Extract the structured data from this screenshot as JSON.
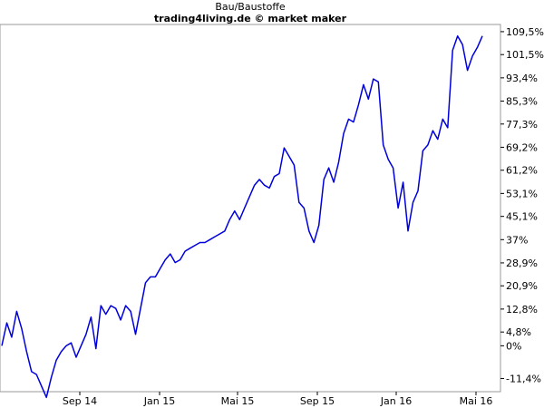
{
  "chart_data": {
    "type": "line",
    "title": "Bau/Baustoffe",
    "subtitle": "trading4living.de © market maker",
    "xlabel": "",
    "ylabel": "",
    "y_unit": "%",
    "ylim": [
      -16,
      112
    ],
    "grid": false,
    "x_tick_labels": [
      "Sep 14",
      "Jan 15",
      "Mai 15",
      "Sep 15",
      "Jan 16",
      "Mai 16"
    ],
    "y_tick_labels": [
      "109,5%",
      "101,5%",
      "93,4%",
      "85,3%",
      "77,3%",
      "69,2%",
      "61,2%",
      "53,1%",
      "45,1%",
      "37%",
      "28,9%",
      "20,9%",
      "12,8%",
      "4,8%",
      "0%",
      "-11,4%"
    ],
    "y_tick_values": [
      109.5,
      101.5,
      93.4,
      85.3,
      77.3,
      69.2,
      61.2,
      53.1,
      45.1,
      37,
      28.9,
      20.9,
      12.8,
      4.8,
      0,
      -11.4
    ],
    "x_range": [
      "Jun 14",
      "Mai 16"
    ],
    "series": [
      {
        "color": "#0000dd",
        "x": [
          "Jun 14",
          "Jun 14",
          "Jul 14",
          "Jul 14",
          "Jul 14",
          "Jul 14",
          "Aug 14",
          "Aug 14",
          "Aug 14",
          "Aug 14",
          "Aug 14",
          "Sep 14",
          "Sep 14",
          "Sep 14",
          "Sep 14",
          "Sep 14",
          "Okt 14",
          "Okt 14",
          "Okt 14",
          "Okt 14",
          "Nov 14",
          "Nov 14",
          "Nov 14",
          "Nov 14",
          "Dez 14",
          "Dez 14",
          "Dez 14",
          "Dez 14",
          "Jan 15",
          "Jan 15",
          "Jan 15",
          "Jan 15",
          "Feb 15",
          "Feb 15",
          "Feb 15",
          "Feb 15",
          "Mär 15",
          "Mär 15",
          "Mär 15",
          "Mär 15",
          "Apr 15",
          "Apr 15",
          "Apr 15",
          "Apr 15",
          "Mai 15",
          "Mai 15",
          "Mai 15",
          "Mai 15",
          "Jun 15",
          "Jun 15",
          "Jun 15",
          "Jun 15",
          "Jul 15",
          "Jul 15",
          "Jul 15",
          "Jul 15",
          "Aug 15",
          "Aug 15",
          "Aug 15",
          "Aug 15",
          "Aug 15",
          "Sep 15",
          "Sep 15",
          "Sep 15",
          "Sep 15",
          "Sep 15",
          "Okt 15",
          "Okt 15",
          "Okt 15",
          "Okt 15",
          "Nov 15",
          "Nov 15",
          "Nov 15",
          "Nov 15",
          "Dez 15",
          "Dez 15",
          "Dez 15",
          "Dez 15",
          "Jan 16",
          "Jan 16",
          "Jan 16",
          "Jan 16",
          "Feb 16",
          "Feb 16",
          "Feb 16",
          "Feb 16",
          "Mär 16",
          "Mär 16",
          "Mär 16",
          "Mär 16",
          "Mär 16",
          "Apr 16",
          "Apr 16",
          "Apr 16",
          "Apr 16",
          "Mai 16",
          "Mai 16",
          "Mai 16"
        ],
        "values": [
          0,
          8,
          3,
          12,
          6,
          -2,
          -9,
          -10,
          -14,
          -18,
          -11,
          -5,
          -2,
          0,
          1,
          -4,
          0,
          4,
          10,
          -1,
          14,
          11,
          14,
          13,
          9,
          14,
          12,
          4,
          13,
          22,
          24,
          24,
          27,
          30,
          32,
          29,
          30,
          33,
          34,
          35,
          36,
          36,
          37,
          38,
          39,
          40,
          44,
          47,
          44,
          48,
          52,
          56,
          58,
          56,
          55,
          59,
          60,
          69,
          66,
          63,
          50,
          48,
          40,
          36,
          42,
          58,
          62,
          57,
          64,
          74,
          79,
          78,
          84,
          91,
          86,
          93,
          92,
          70,
          65,
          62,
          48,
          57,
          40,
          50,
          54,
          68,
          70,
          75,
          72,
          79,
          76,
          103,
          108,
          105,
          96,
          101,
          104,
          108
        ]
      }
    ]
  }
}
